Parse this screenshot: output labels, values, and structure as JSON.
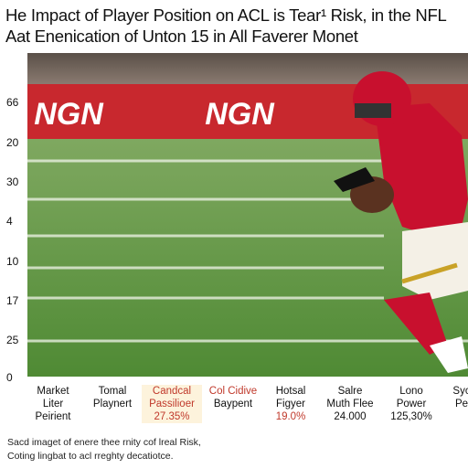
{
  "header": {
    "title": "He Impact of Player Position on ACL is Tear¹ Risk, in the NFL",
    "subtitle": "Aat Enenication of Unton 15 in All Faverer Monet"
  },
  "banner": [
    "NGN",
    "NGN"
  ],
  "axis_labels": [
    "66",
    "20",
    "30",
    "4",
    "10",
    "17",
    "25",
    "0"
  ],
  "columns": [
    [
      "Market",
      "Liter",
      "Peirient"
    ],
    [
      "Tomal",
      "Playnert"
    ],
    [
      "Candcal",
      "Passilioer",
      "27.35%"
    ],
    [
      "Col Cidive",
      "Baypent"
    ],
    [
      "Hotsal",
      "Figyer",
      "19.0%"
    ],
    [
      "Salre",
      "Muth Flee",
      "24.000"
    ],
    [
      "Lono",
      "Power",
      "125,30%"
    ],
    [
      "Syc",
      "Pe"
    ]
  ],
  "footer": [
    "Sacd imaget of enere thee rnity cof lreal Risk,",
    "Coting lingbat to acl rreghty decatiotce."
  ]
}
